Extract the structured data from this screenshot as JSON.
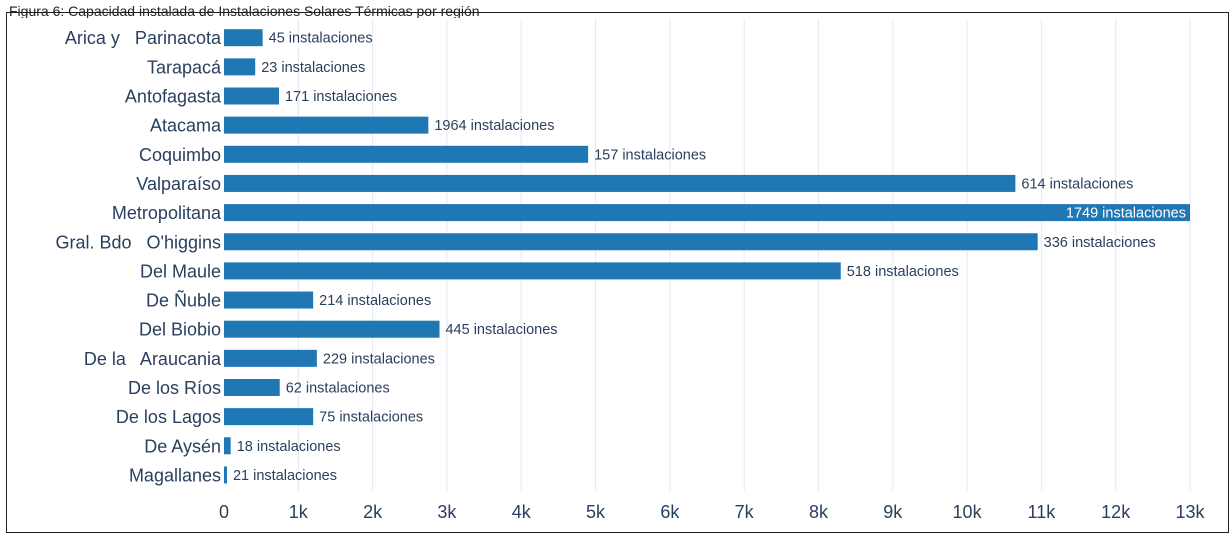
{
  "caption": "Figura 6: Capacidad instalada de Instalaciones Solares Térmicas por región",
  "chart_data": {
    "type": "bar",
    "orientation": "horizontal",
    "categories": [
      "Arica y   Parinacota",
      "Tarapacá",
      "Antofagasta",
      "Atacama",
      "Coquimbo",
      "Valparaíso",
      "Metropolitana",
      "Gral. Bdo   O'higgins",
      "Del Maule",
      "De Ñuble",
      "Del Biobio",
      "De la   Araucania",
      "De los Ríos",
      "De los Lagos",
      "De Aysén",
      "Magallanes"
    ],
    "values": [
      520,
      420,
      740,
      2750,
      4900,
      10650,
      13000,
      10950,
      8300,
      1200,
      2900,
      1250,
      750,
      1200,
      90,
      40
    ],
    "data_labels": [
      "45 instalaciones",
      "23 instalaciones",
      "171 instalaciones",
      "1964 instalaciones",
      "157 instalaciones",
      "614 instalaciones",
      "1749 instalaciones",
      "336 instalaciones",
      "518 instalaciones",
      "214 instalaciones",
      "445 instalaciones",
      "229 instalaciones",
      "62 instalaciones",
      "75 instalaciones",
      "18 instalaciones",
      "21 instalaciones"
    ],
    "xlim": [
      0,
      13000
    ],
    "xticks": [
      0,
      1000,
      2000,
      3000,
      4000,
      5000,
      6000,
      7000,
      8000,
      9000,
      10000,
      11000,
      12000,
      13000
    ],
    "xtick_labels": [
      "0",
      "1k",
      "2k",
      "3k",
      "4k",
      "5k",
      "6k",
      "7k",
      "8k",
      "9k",
      "10k",
      "11k",
      "12k",
      "13k"
    ],
    "title": "",
    "xlabel": "",
    "ylabel": "",
    "grid": true,
    "bar_color": "#1f77b4"
  }
}
